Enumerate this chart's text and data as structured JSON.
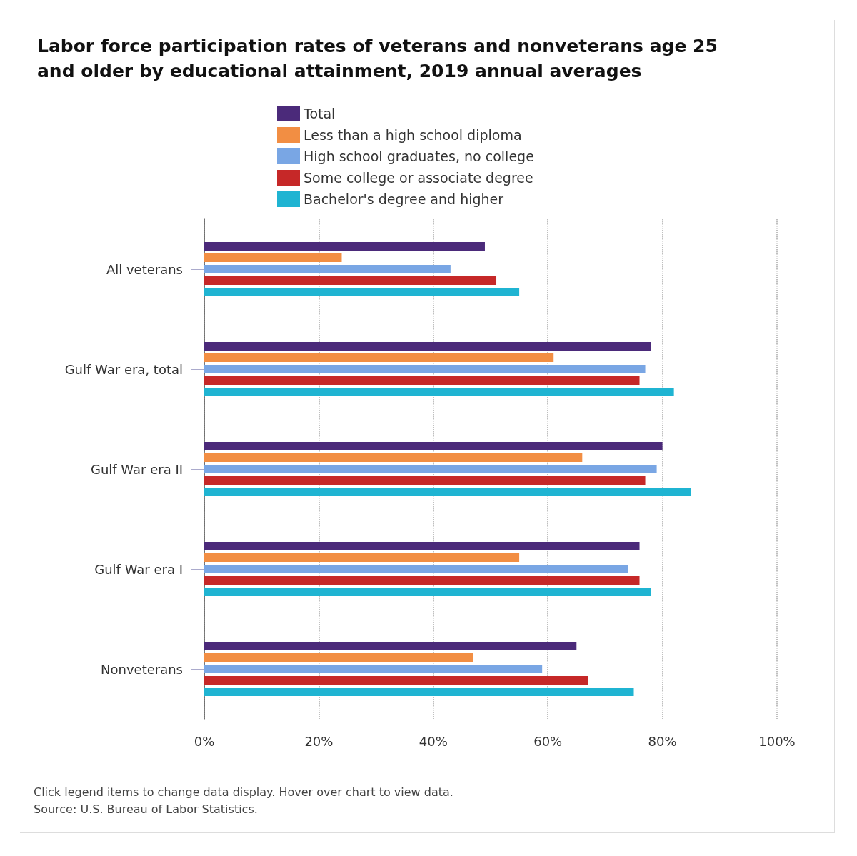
{
  "chart_data": {
    "type": "bar",
    "orientation": "horizontal",
    "title": "Labor force participation rates of veterans and nonveterans age 25 and older by educational attainment, 2019 annual averages",
    "categories": [
      "All veterans",
      "Gulf War era, total",
      "Gulf War era II",
      "Gulf War era I",
      "Nonveterans"
    ],
    "series": [
      {
        "name": "Total",
        "color": "#4b2a7a",
        "values": [
          49,
          78,
          80,
          76,
          65
        ]
      },
      {
        "name": "Less than a high school diploma",
        "color": "#f28e43",
        "values": [
          24,
          61,
          66,
          55,
          47
        ]
      },
      {
        "name": "High school graduates, no college",
        "color": "#79a6e4",
        "values": [
          43,
          77,
          79,
          74,
          59
        ]
      },
      {
        "name": "Some college or associate degree",
        "color": "#c62828",
        "values": [
          51,
          76,
          77,
          76,
          67
        ]
      },
      {
        "name": "Bachelor's degree and higher",
        "color": "#1fb4d2",
        "values": [
          55,
          82,
          85,
          78,
          75
        ]
      }
    ],
    "xlim": [
      0,
      100
    ],
    "xticks": [
      {
        "value": 0,
        "label": "0%"
      },
      {
        "value": 20,
        "label": "20%"
      },
      {
        "value": 40,
        "label": "40%"
      },
      {
        "value": 60,
        "label": "60%"
      },
      {
        "value": 80,
        "label": "80%"
      },
      {
        "value": 100,
        "label": "100%"
      }
    ],
    "grid": "x",
    "legend": "top",
    "annotations": [
      "Click legend items to change data display. Hover over chart to view data.",
      "Source: U.S. Bureau of Labor Statistics."
    ]
  }
}
